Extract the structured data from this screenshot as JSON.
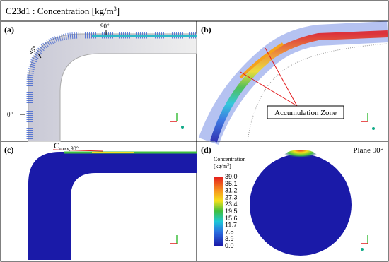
{
  "title": {
    "text": "C23d1 : Concentration",
    "unit": "[kg/m",
    "unit_exponent": "3",
    "unit_close": "]"
  },
  "panels": [
    {
      "label": "(a)",
      "angle_labels": [
        "90°",
        "45°",
        "0°"
      ]
    },
    {
      "label": "(b)",
      "annotation": "Accumulation Zone"
    },
    {
      "label": "(c)",
      "annotation": {
        "base": "C",
        "subscript": "max,90°"
      }
    },
    {
      "label": "(d)",
      "plane": "Plane 90°",
      "colorbar": {
        "title": "Concentration",
        "unit": "[kg/m",
        "unit_exponent": "3",
        "unit_close": "]",
        "ticks": [
          "39.0",
          "35.1",
          "31.2",
          "27.3",
          "23.4",
          "19.5",
          "15.6",
          "11.7",
          "7.8",
          "3.9",
          "0.0"
        ]
      }
    }
  ]
}
